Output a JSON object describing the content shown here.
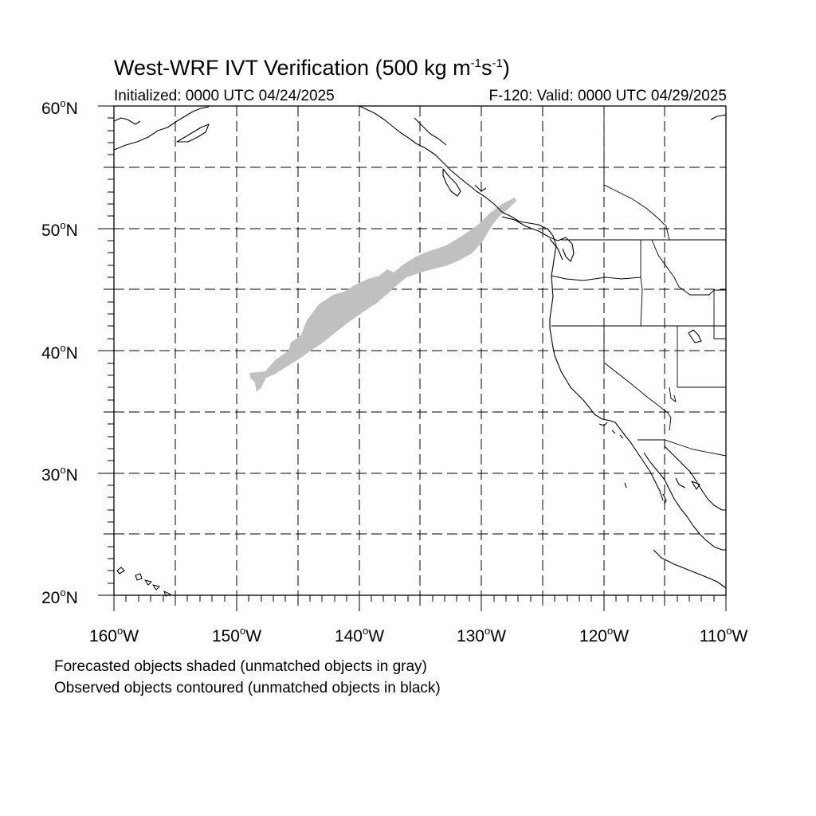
{
  "title": {
    "main": "West-WRF IVT Verification (500 kg m",
    "sup1": "-1",
    "mid": "s",
    "sup2": "-1",
    "end": ")"
  },
  "init_text": "Initialized: 0000 UTC 04/24/2025",
  "valid_text": "F-120: Valid: 0000 UTC 04/29/2025",
  "lat_labels": [
    {
      "num": "60",
      "deg": "o",
      "dir": "N"
    },
    {
      "num": "50",
      "deg": "o",
      "dir": "N"
    },
    {
      "num": "40",
      "deg": "o",
      "dir": "N"
    },
    {
      "num": "30",
      "deg": "o",
      "dir": "N"
    },
    {
      "num": "20",
      "deg": "o",
      "dir": "N"
    }
  ],
  "lon_labels": [
    {
      "num": "160",
      "deg": "o",
      "dir": "W"
    },
    {
      "num": "150",
      "deg": "o",
      "dir": "W"
    },
    {
      "num": "140",
      "deg": "o",
      "dir": "W"
    },
    {
      "num": "130",
      "deg": "o",
      "dir": "W"
    },
    {
      "num": "120",
      "deg": "o",
      "dir": "W"
    },
    {
      "num": "110",
      "deg": "o",
      "dir": "W"
    }
  ],
  "notes": [
    "Forecasted objects shaded (unmatched objects in gray)",
    "Observed objects contoured (unmatched objects in black)"
  ],
  "map_extent": {
    "lon_min": -160,
    "lon_max": -110,
    "lat_min": 20,
    "lat_max": 60
  },
  "colors": {
    "forecast_unmatched": "#c0c0c0",
    "coastline": "#000000",
    "grid": "#000000"
  }
}
